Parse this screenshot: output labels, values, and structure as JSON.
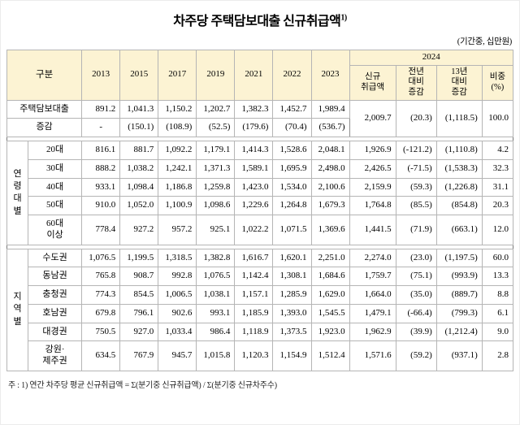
{
  "chart_data": {
    "type": "table",
    "title": "차주당 주택담보대출 신규취급액",
    "title_superscript": "1)",
    "unit_note": "(기간중, 십만원)",
    "corner_label": "구분",
    "year_columns": [
      "2013",
      "2015",
      "2017",
      "2019",
      "2021",
      "2022",
      "2023"
    ],
    "group_2024_label": "2024",
    "sub_columns_2024": [
      "신규\n취급액",
      "전년\n대비\n증감",
      "13년\n대비\n증감",
      "비중\n(%)"
    ],
    "sections": [
      {
        "group": "",
        "rows": [
          {
            "label": "주택담보대출",
            "values": [
              "891.2",
              "1,041.3",
              "1,150.2",
              "1,202.7",
              "1,382.3",
              "1,452.7",
              "1,989.4"
            ],
            "values_2024": [
              "2,009.7",
              "(20.3)",
              "(1,118.5)",
              "100.0"
            ]
          },
          {
            "label": "증감",
            "values": [
              "-",
              "(150.1)",
              "(108.9)",
              "(52.5)",
              "(179.6)",
              "(70.4)",
              "(536.7)"
            ],
            "values_2024": null
          }
        ]
      },
      {
        "group": "연령대별",
        "rows": [
          {
            "label": "20대",
            "values": [
              "816.1",
              "881.7",
              "1,092.2",
              "1,179.1",
              "1,414.3",
              "1,528.6",
              "2,048.1"
            ],
            "values_2024": [
              "1,926.9",
              "(-121.2)",
              "(1,110.8)",
              "4.2"
            ]
          },
          {
            "label": "30대",
            "values": [
              "888.2",
              "1,038.2",
              "1,242.1",
              "1,371.3",
              "1,589.1",
              "1,695.9",
              "2,498.0"
            ],
            "values_2024": [
              "2,426.5",
              "(-71.5)",
              "(1,538.3)",
              "32.3"
            ]
          },
          {
            "label": "40대",
            "values": [
              "933.1",
              "1,098.4",
              "1,186.8",
              "1,259.8",
              "1,423.0",
              "1,534.0",
              "2,100.6"
            ],
            "values_2024": [
              "2,159.9",
              "(59.3)",
              "(1,226.8)",
              "31.1"
            ]
          },
          {
            "label": "50대",
            "values": [
              "910.0",
              "1,052.0",
              "1,100.9",
              "1,098.6",
              "1,229.6",
              "1,264.8",
              "1,679.3"
            ],
            "values_2024": [
              "1,764.8",
              "(85.5)",
              "(854.8)",
              "20.3"
            ]
          },
          {
            "label": "60대\n이상",
            "values": [
              "778.4",
              "927.2",
              "957.2",
              "925.1",
              "1,022.2",
              "1,071.5",
              "1,369.6"
            ],
            "values_2024": [
              "1,441.5",
              "(71.9)",
              "(663.1)",
              "12.0"
            ]
          }
        ]
      },
      {
        "group": "지역별",
        "rows": [
          {
            "label": "수도권",
            "values": [
              "1,076.5",
              "1,199.5",
              "1,318.5",
              "1,382.8",
              "1,616.7",
              "1,620.1",
              "2,251.0"
            ],
            "values_2024": [
              "2,274.0",
              "(23.0)",
              "(1,197.5)",
              "60.0"
            ]
          },
          {
            "label": "동남권",
            "values": [
              "765.8",
              "908.7",
              "992.8",
              "1,076.5",
              "1,142.4",
              "1,308.1",
              "1,684.6"
            ],
            "values_2024": [
              "1,759.7",
              "(75.1)",
              "(993.9)",
              "13.3"
            ]
          },
          {
            "label": "충청권",
            "values": [
              "774.3",
              "854.5",
              "1,006.5",
              "1,038.1",
              "1,157.1",
              "1,285.9",
              "1,629.0"
            ],
            "values_2024": [
              "1,664.0",
              "(35.0)",
              "(889.7)",
              "8.8"
            ]
          },
          {
            "label": "호남권",
            "values": [
              "679.8",
              "796.1",
              "902.6",
              "993.1",
              "1,185.9",
              "1,393.0",
              "1,545.5"
            ],
            "values_2024": [
              "1,479.1",
              "(-66.4)",
              "(799.3)",
              "6.1"
            ]
          },
          {
            "label": "대경권",
            "values": [
              "750.5",
              "927.0",
              "1,033.4",
              "986.4",
              "1,118.9",
              "1,373.5",
              "1,923.0"
            ],
            "values_2024": [
              "1,962.9",
              "(39.9)",
              "(1,212.4)",
              "9.0"
            ]
          },
          {
            "label": "강원·\n제주권",
            "values": [
              "634.5",
              "767.9",
              "945.7",
              "1,015.8",
              "1,120.3",
              "1,154.9",
              "1,512.4"
            ],
            "values_2024": [
              "1,571.6",
              "(59.2)",
              "(937.1)",
              "2.8"
            ]
          }
        ]
      }
    ],
    "footnote": "주 : 1) 연간 차주당 평균 신규취급액 = Σ(분기중 신규취급액) / Σ(분기중 신규차주수)"
  }
}
